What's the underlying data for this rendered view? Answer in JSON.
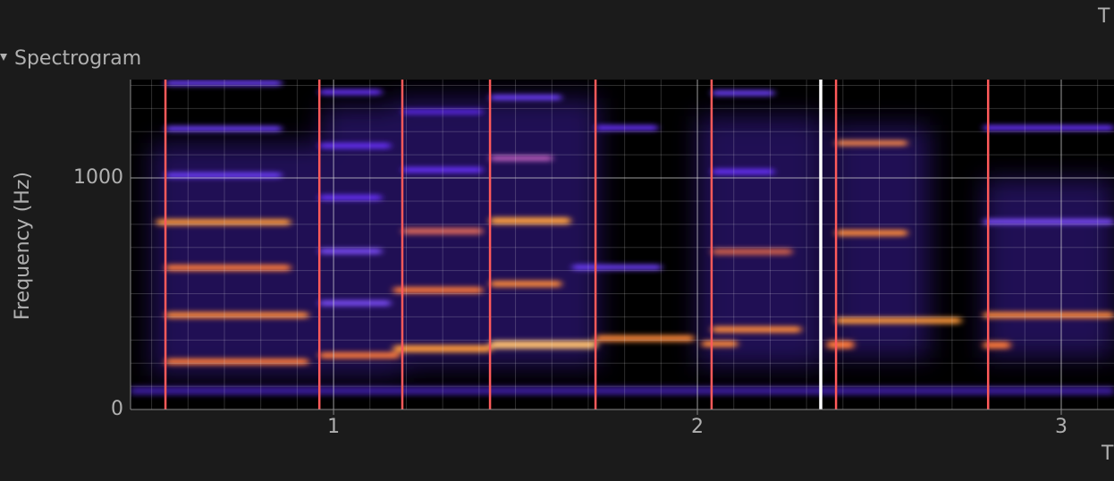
{
  "chart_data": {
    "type": "spectrogram",
    "panel_title": "Spectrogram",
    "top_right_label": "T",
    "x_label": "T",
    "y_label": "Frequency (Hz)",
    "xlim": [
      0.442,
      3.145
    ],
    "ylim": [
      0,
      1425
    ],
    "xticks": [
      1,
      2,
      3
    ],
    "yticks": [
      0,
      1000
    ],
    "minor_xticks": [
      0.5,
      0.6,
      0.7,
      0.8,
      0.9,
      1.1,
      1.2,
      1.3,
      1.4,
      1.5,
      1.6,
      1.7,
      1.8,
      1.9,
      2.1,
      2.2,
      2.3,
      2.4,
      2.5,
      2.6,
      2.7,
      2.8,
      2.9,
      3.1
    ],
    "minor_yticks": [
      100,
      200,
      300,
      400,
      500,
      600,
      700,
      800,
      900,
      1100,
      1200,
      1300,
      1400
    ],
    "markers": {
      "color": "#ff5a5a",
      "x": [
        0.538,
        0.961,
        1.189,
        1.43,
        1.72,
        2.039,
        2.381,
        2.799
      ]
    },
    "playhead": {
      "color": "#ffffff",
      "x": 2.339
    },
    "grid": true
  }
}
